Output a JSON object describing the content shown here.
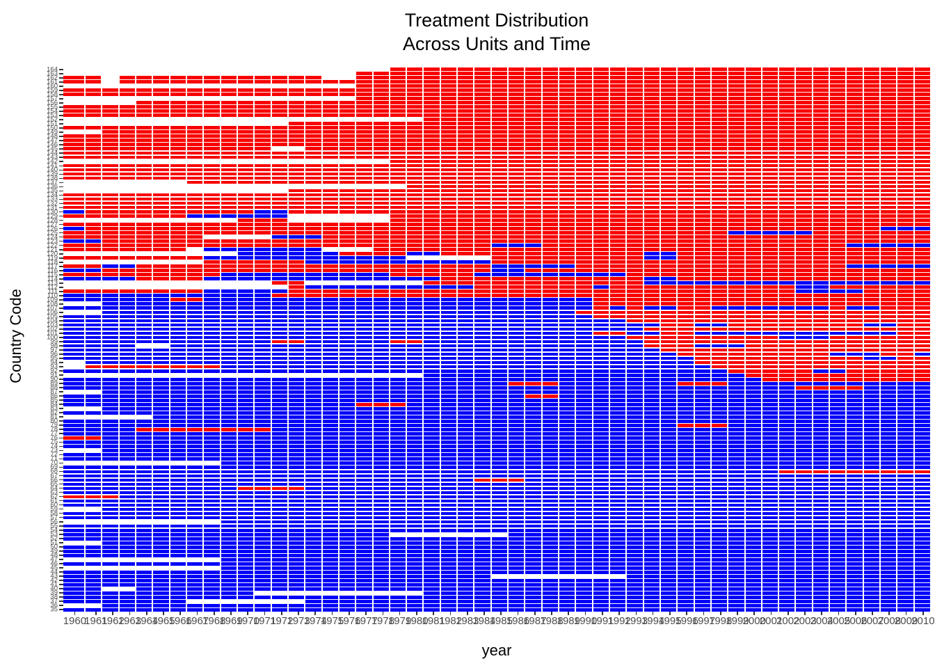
{
  "title": {
    "line1": "Treatment Distribution",
    "line2": "Across Units and Time"
  },
  "axes": {
    "x_title": "year",
    "y_title": "Country Code",
    "x_tick_labels": [
      1960,
      1961,
      1962,
      1963,
      1964,
      1965,
      1966,
      1967,
      1968,
      1969,
      1970,
      1971,
      1972,
      1973,
      1974,
      1975,
      1976,
      1977,
      1978,
      1979,
      1980,
      1981,
      1982,
      1983,
      1984,
      1985,
      1986,
      1987,
      1988,
      1989,
      1990,
      1991,
      1992,
      1993,
      1994,
      1995,
      1996,
      1997,
      1998,
      1999,
      2000,
      2001,
      2002,
      2003,
      2004,
      2005,
      2006,
      2007,
      2008,
      2009,
      2010
    ],
    "y_tick_labels": [
      164,
      163,
      162,
      161,
      160,
      159,
      158,
      157,
      156,
      155,
      154,
      153,
      152,
      151,
      150,
      149,
      148,
      147,
      146,
      145,
      144,
      143,
      142,
      141,
      140,
      139,
      138,
      137,
      136,
      135,
      134,
      133,
      132,
      131,
      130,
      129,
      128,
      127,
      126,
      125,
      124,
      123,
      122,
      121,
      120,
      119,
      118,
      117,
      116,
      115,
      114,
      113,
      112,
      111,
      110,
      109,
      108,
      107,
      106,
      105,
      104,
      103,
      102,
      101,
      100,
      99,
      98,
      97,
      96,
      95,
      94,
      93,
      92,
      91,
      90,
      89,
      88,
      87,
      86,
      85,
      84,
      83,
      82,
      81,
      80,
      79,
      78,
      77,
      76,
      75,
      74,
      73,
      72,
      71,
      70,
      69,
      68,
      67,
      66,
      65,
      64,
      63,
      62,
      61,
      60,
      59,
      58,
      57,
      56,
      55,
      54,
      53,
      52,
      51,
      50,
      49,
      48,
      47,
      46,
      45,
      44,
      43,
      42,
      41,
      40,
      39,
      38,
      37,
      36,
      35
    ]
  },
  "colors": {
    "treated": "#F80000",
    "control": "#0000F8",
    "missing": "#FFFFFF",
    "axis_text": "#4d4d4d",
    "tick": "#333333",
    "title_text": "#000000"
  },
  "chart_data": {
    "type": "heatmap",
    "x_range": [
      1960,
      2010
    ],
    "n_units": 130,
    "n_periods": 51,
    "cell_codes": {
      "R": "treated",
      "B": "control",
      "W": "missing"
    },
    "legend": "none shown",
    "rows_rle": [
      "W19R32",
      "W17R34",
      "R2W1R12W2R34",
      "R2W1R48",
      "W17R34",
      "R51",
      "R51",
      "W17R34",
      "W4R47",
      "R51",
      "R51",
      "R51",
      "W21R30",
      "W13R38",
      "R51",
      "W2R49",
      "R51",
      "R51",
      "R51",
      "R12W2R37",
      "R51",
      "R51",
      "W19R32",
      "R51",
      "R51",
      "R51",
      "R51",
      "W7R44",
      "W20R31",
      "W13R38",
      "R51",
      "R51",
      "R51",
      "R51",
      "B1R10B2R38",
      "R7B6W6R32",
      "W10R3W6R32",
      "R51",
      "B1R47B3",
      "R39B5R7",
      "R8W4B3R36",
      "B2R49",
      "R25B3R18B5",
      "R7W1B7W3R33",
      "W10B6R4B2R12B2R15",
      "R8B12W5R9B2R15",
      "W8R6B11R26",
      "R2B2R21B5R16B5",
      "B2R23B2R24",
      "R9B10R5B9R18",
      "B4R4B14R12B2R15",
      "W12R2W7R13B17",
      "W13R1B10R7B1R11B2R6",
      "R8B5R30B4R4",
      "B12R39",
      "B6R2B23R20",
      "W2B29R20",
      "B31R1B1R1B2R2B7R1B2R3",
      "W2B28R21",
      "B31R20",
      "B33R18",
      "B35R2B2R8B2R2",
      "B34R17",
      "B31R2B2R2B12R2",
      "B33R9B3R6",
      "B12R2B5R2B13R17",
      "B4W2B28R3B3R11",
      "B35R16",
      "B36R9B3R2B1",
      "B37R10B2R2",
      "W1B36R14",
      "W1R8B29R13",
      "B39R5B2R5",
      "W21B19R11",
      "B41R10",
      "B26R3B7R3B12",
      "B43R4B4",
      "W2B49",
      "B27R2B22",
      "B51",
      "B17R3B31",
      "W2B49",
      "B51",
      "W5B46",
      "B51",
      "B36R3B12",
      "B4R8B39",
      "B51",
      "R2B49",
      "B51",
      "B51",
      "W2B49",
      "B51",
      "B51",
      "W9B42",
      "B51",
      "B42R9",
      "B51",
      "B24R3B24",
      "B51",
      "B10R4B37",
      "B51",
      "R3B48",
      "B51",
      "B51",
      "W2B49",
      "B51",
      "B51",
      "W9B42",
      "B51",
      "B51",
      "B19W7B25",
      "B51",
      "W2B49",
      "B51",
      "B51",
      "B51",
      "W9B42",
      "B51",
      "W9B42",
      "B51",
      "B25W8B18",
      "B51",
      "B51",
      "B2W2B47",
      "B11W10B30",
      "B51",
      "B7W7B37",
      "W2B49",
      "B51"
    ]
  }
}
